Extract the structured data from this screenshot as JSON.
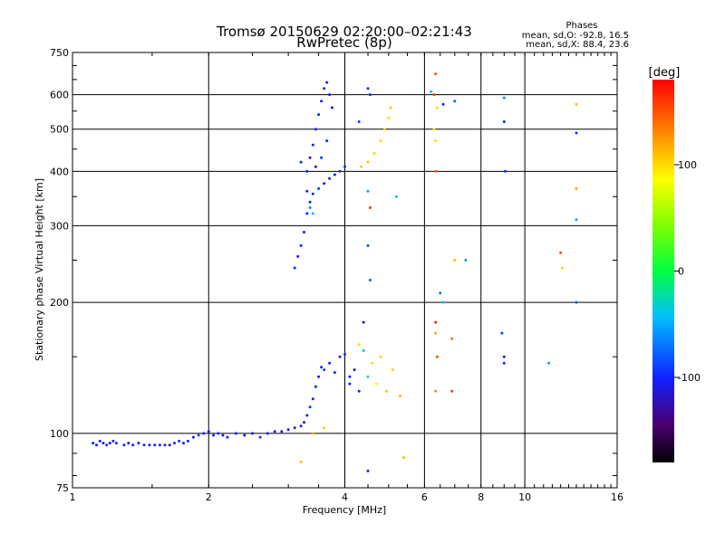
{
  "chart_data": {
    "type": "scatter",
    "title": "Tromsø 20150629 02:20:00–02:21:43",
    "subtitle": "RwPretec (8p)",
    "xlabel": "Frequency [MHz]",
    "ylabel": "Stationary phase Virtual Height [km]",
    "x_scale": "log2",
    "y_scale": "log",
    "xlim": [
      1,
      16
    ],
    "ylim": [
      75,
      750
    ],
    "x_ticks": [
      1,
      2,
      4,
      6,
      8,
      10,
      16
    ],
    "x_tick_labels": [
      "1",
      "2",
      "4",
      "6",
      "8",
      "10",
      "16"
    ],
    "y_ticks": [
      75,
      100,
      200,
      300,
      400,
      500,
      600,
      750
    ],
    "y_tick_labels": [
      "75",
      "100",
      "200",
      "300",
      "400",
      "500",
      "600",
      "750"
    ],
    "grid": true,
    "phase_stats": {
      "title": "Phases",
      "line_o": "mean, sd,O: -92.8, 16.5",
      "line_x": "mean, sd,X: 88.4, 23.6"
    },
    "colorbar": {
      "label": "[deg]",
      "ticks": [
        100,
        0,
        -100
      ],
      "tick_labels": [
        "100",
        "0",
        "-100"
      ],
      "range": [
        -180,
        180
      ]
    },
    "series": [
      {
        "points": [
          [
            1.11,
            95,
            -105
          ],
          [
            1.13,
            94,
            -110
          ],
          [
            1.15,
            96,
            -100
          ],
          [
            1.17,
            95,
            -108
          ],
          [
            1.19,
            94,
            -95
          ],
          [
            1.21,
            95,
            -110
          ],
          [
            1.23,
            96,
            -102
          ],
          [
            1.25,
            95,
            -104
          ],
          [
            1.3,
            94,
            -100
          ],
          [
            1.33,
            95,
            -106
          ],
          [
            1.36,
            94,
            -108
          ],
          [
            1.4,
            95,
            -110
          ],
          [
            1.44,
            94,
            -100
          ],
          [
            1.48,
            94,
            -104
          ],
          [
            1.52,
            94,
            -108
          ],
          [
            1.56,
            94,
            -98
          ],
          [
            1.6,
            94,
            -105
          ],
          [
            1.64,
            94,
            -110
          ],
          [
            1.68,
            95,
            -100
          ],
          [
            1.72,
            96,
            -95
          ],
          [
            1.76,
            95,
            -108
          ],
          [
            1.8,
            96,
            -100
          ],
          [
            1.85,
            98,
            -104
          ],
          [
            1.9,
            99,
            -85
          ],
          [
            1.95,
            100,
            -100
          ],
          [
            2.0,
            101,
            -110
          ],
          [
            2.05,
            99,
            -95
          ],
          [
            2.1,
            100,
            -104
          ],
          [
            2.15,
            99,
            -108
          ],
          [
            2.2,
            98,
            -100
          ],
          [
            2.3,
            100,
            -106
          ],
          [
            2.4,
            99,
            -102
          ],
          [
            2.5,
            100,
            -110
          ],
          [
            2.6,
            98,
            -95
          ],
          [
            2.7,
            100,
            -100
          ],
          [
            2.8,
            101,
            -105
          ],
          [
            2.9,
            101,
            -100
          ],
          [
            3.0,
            102,
            -104
          ],
          [
            3.1,
            103,
            -110
          ],
          [
            3.2,
            104,
            -100
          ],
          [
            3.25,
            106,
            -108
          ],
          [
            3.3,
            110,
            -100
          ],
          [
            3.35,
            115,
            -95
          ],
          [
            3.4,
            120,
            -104
          ],
          [
            3.45,
            128,
            -100
          ],
          [
            3.5,
            135,
            -106
          ],
          [
            3.55,
            142,
            -100
          ],
          [
            3.6,
            140,
            -90
          ],
          [
            3.7,
            145,
            -104
          ],
          [
            3.8,
            138,
            -100
          ],
          [
            3.9,
            150,
            -95
          ],
          [
            4.0,
            152,
            -100
          ],
          [
            4.1,
            130,
            -104
          ],
          [
            4.2,
            140,
            -108
          ],
          [
            4.3,
            125,
            -100
          ],
          [
            4.4,
            155,
            -40
          ],
          [
            4.5,
            135,
            -20
          ],
          [
            4.6,
            145,
            60
          ],
          [
            4.7,
            130,
            80
          ],
          [
            4.8,
            150,
            100
          ],
          [
            4.95,
            125,
            110
          ],
          [
            5.1,
            140,
            105
          ],
          [
            5.3,
            122,
            115
          ],
          [
            3.4,
            100,
            120
          ],
          [
            3.6,
            103,
            105
          ],
          [
            3.1,
            240,
            -100
          ],
          [
            3.15,
            255,
            -104
          ],
          [
            3.2,
            270,
            -100
          ],
          [
            3.25,
            290,
            -108
          ],
          [
            3.3,
            320,
            -100
          ],
          [
            3.35,
            340,
            -104
          ],
          [
            3.4,
            355,
            -100
          ],
          [
            3.5,
            365,
            -95
          ],
          [
            3.6,
            375,
            -100
          ],
          [
            3.7,
            385,
            -104
          ],
          [
            3.8,
            393,
            -100
          ],
          [
            3.9,
            400,
            -106
          ],
          [
            4.0,
            410,
            -100
          ],
          [
            3.35,
            330,
            -60
          ],
          [
            3.4,
            320,
            -40
          ],
          [
            3.3,
            360,
            -104
          ],
          [
            3.3,
            400,
            -100
          ],
          [
            3.35,
            430,
            -108
          ],
          [
            3.4,
            460,
            -100
          ],
          [
            3.45,
            500,
            -104
          ],
          [
            3.5,
            540,
            -100
          ],
          [
            3.55,
            580,
            -106
          ],
          [
            3.6,
            620,
            -100
          ],
          [
            3.65,
            640,
            -104
          ],
          [
            3.7,
            600,
            -100
          ],
          [
            3.75,
            560,
            -110
          ],
          [
            3.65,
            470,
            -100
          ],
          [
            3.55,
            430,
            -95
          ],
          [
            3.45,
            410,
            -104
          ],
          [
            3.2,
            420,
            -100
          ],
          [
            4.35,
            410,
            105
          ],
          [
            4.5,
            420,
            108
          ],
          [
            4.65,
            440,
            104
          ],
          [
            4.8,
            470,
            102
          ],
          [
            4.9,
            500,
            106
          ],
          [
            5.0,
            530,
            100
          ],
          [
            5.05,
            560,
            110
          ],
          [
            4.5,
            620,
            -95
          ],
          [
            4.55,
            600,
            -100
          ],
          [
            4.3,
            520,
            -90
          ],
          [
            4.5,
            360,
            -55
          ],
          [
            4.55,
            330,
            160
          ],
          [
            4.5,
            270,
            -85
          ],
          [
            4.55,
            225,
            -80
          ],
          [
            4.4,
            180,
            -120
          ],
          [
            4.1,
            135,
            -100
          ],
          [
            4.3,
            160,
            100
          ],
          [
            5.2,
            350,
            -45
          ],
          [
            6.2,
            610,
            -40
          ],
          [
            6.3,
            600,
            160
          ],
          [
            6.35,
            670,
            150
          ],
          [
            6.4,
            560,
            100
          ],
          [
            6.3,
            500,
            95
          ],
          [
            6.35,
            470,
            100
          ],
          [
            6.35,
            400,
            150
          ],
          [
            6.35,
            180,
            170
          ],
          [
            6.35,
            170,
            120
          ],
          [
            6.4,
            150,
            150
          ],
          [
            6.35,
            125,
            130
          ],
          [
            6.6,
            570,
            -100
          ],
          [
            7.0,
            580,
            -80
          ],
          [
            7.0,
            250,
            110
          ],
          [
            7.4,
            250,
            -60
          ],
          [
            6.5,
            210,
            -70
          ],
          [
            6.6,
            200,
            -45
          ],
          [
            6.9,
            165,
            140
          ],
          [
            6.9,
            125,
            160
          ],
          [
            9.0,
            590,
            -60
          ],
          [
            9.0,
            520,
            -100
          ],
          [
            9.05,
            400,
            -100
          ],
          [
            8.9,
            170,
            -90
          ],
          [
            9.0,
            150,
            -100
          ],
          [
            9.0,
            145,
            -95
          ],
          [
            11.3,
            145,
            -55
          ],
          [
            12.0,
            260,
            150
          ],
          [
            12.1,
            240,
            100
          ],
          [
            13.0,
            570,
            110
          ],
          [
            13.0,
            490,
            -95
          ],
          [
            13.0,
            365,
            120
          ],
          [
            13.0,
            310,
            -50
          ],
          [
            13.0,
            200,
            -80
          ],
          [
            4.5,
            82,
            -100
          ],
          [
            3.2,
            86,
            110
          ],
          [
            5.4,
            88,
            110
          ]
        ]
      }
    ]
  }
}
